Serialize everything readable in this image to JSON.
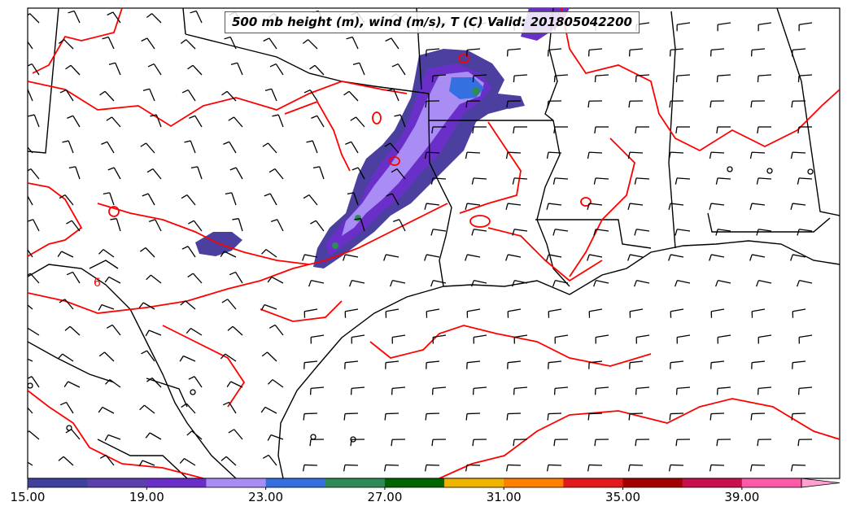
{
  "title": "500 mb height (m), wind (m/s), T (C) Valid: 201805042200",
  "colorbar": {
    "ticks": [
      "15.00",
      "19.00",
      "23.00",
      "27.00",
      "31.00",
      "35.00",
      "39.00"
    ],
    "tick_values": [
      15,
      19,
      23,
      27,
      31,
      35,
      39
    ],
    "min": 15,
    "max": 43,
    "colors": [
      "#3f3f9e",
      "#5b3fae",
      "#6a2fc8",
      "#a98df5",
      "#3570e0",
      "#2e8b57",
      "#006400",
      "#f0b400",
      "#ff7f00",
      "#e31a1c",
      "#a00000",
      "#c8104e",
      "#ff5aa8",
      "#ffa0d0"
    ]
  },
  "contour_label": "6",
  "colors": {
    "contour": "#ff0000",
    "boundary": "#000000",
    "barb": "#000000"
  }
}
